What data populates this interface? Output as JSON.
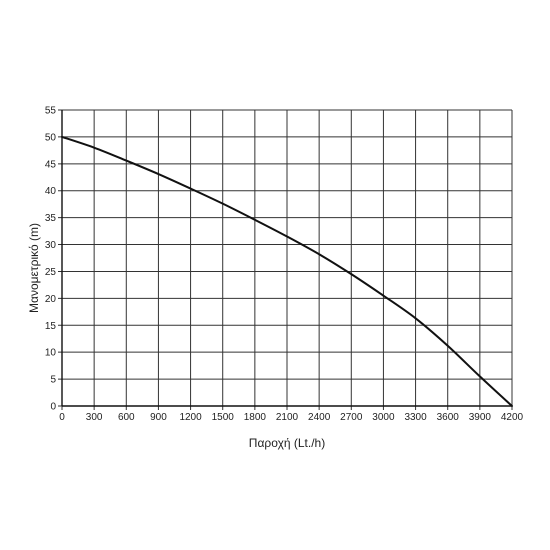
{
  "chart_data": {
    "type": "line",
    "title": "",
    "xlabel": "Παροχή (Lt./h)",
    "ylabel": "Μανομετρικό  (m)",
    "xlim": [
      0,
      4200
    ],
    "ylim": [
      0,
      55
    ],
    "x_ticks": [
      "0",
      "300",
      "600",
      "900",
      "1200",
      "1500",
      "1800",
      "2100",
      "2400",
      "2700",
      "3000",
      "3300",
      "3600",
      "3900",
      "4200"
    ],
    "y_ticks": [
      "0",
      "5",
      "10",
      "15",
      "20",
      "25",
      "30",
      "35",
      "40",
      "45",
      "50",
      "55"
    ],
    "grid": true,
    "legend": "none",
    "series": [
      {
        "x": [
          0,
          300,
          600,
          900,
          1200,
          1500,
          1800,
          2100,
          2400,
          2700,
          3000,
          3300,
          3600,
          3900,
          4200
        ],
        "y": [
          50,
          48,
          45.6,
          43.1,
          40.4,
          37.6,
          34.6,
          31.5,
          28.2,
          24.5,
          20.5,
          16.3,
          11.2,
          5.5,
          0
        ]
      }
    ],
    "colors": {
      "line": "#111111",
      "grid": "#333333",
      "axis": "#111111"
    }
  }
}
